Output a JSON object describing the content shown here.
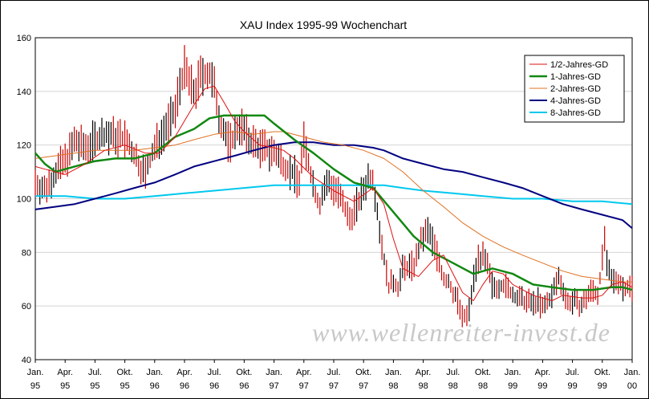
{
  "chart_data": {
    "type": "line",
    "title": "XAU Index 1995-99 Wochenchart",
    "watermark": "www.wellenreiter-invest.de",
    "ylim": [
      40,
      160
    ],
    "yticks": [
      "160",
      "140",
      "120",
      "100",
      "80",
      "60",
      "40"
    ],
    "xlim": [
      1995.0,
      2000.0
    ],
    "xticks": [
      {
        "month": "Jan.",
        "year": "95"
      },
      {
        "month": "Apr.",
        "year": "95"
      },
      {
        "month": "Jul.",
        "year": "95"
      },
      {
        "month": "Okt.",
        "year": "95"
      },
      {
        "month": "Jan.",
        "year": "96"
      },
      {
        "month": "Apr.",
        "year": "96"
      },
      {
        "month": "Jul.",
        "year": "96"
      },
      {
        "month": "Okt.",
        "year": "96"
      },
      {
        "month": "Jan.",
        "year": "97"
      },
      {
        "month": "Apr.",
        "year": "97"
      },
      {
        "month": "Jul.",
        "year": "97"
      },
      {
        "month": "Okt.",
        "year": "97"
      },
      {
        "month": "Jan.",
        "year": "98"
      },
      {
        "month": "Apr.",
        "year": "98"
      },
      {
        "month": "Jul.",
        "year": "98"
      },
      {
        "month": "Okt.",
        "year": "98"
      },
      {
        "month": "Jan.",
        "year": "99"
      },
      {
        "month": "Apr.",
        "year": "99"
      },
      {
        "month": "Jul.",
        "year": "99"
      },
      {
        "month": "Okt.",
        "year": "99"
      },
      {
        "month": "Jan.",
        "year": "00"
      }
    ],
    "grid": "horizontal",
    "legend_position": "top-right",
    "price_color": "#cc0000",
    "price_points": [
      [
        1995.0,
        106
      ],
      [
        1995.08,
        103
      ],
      [
        1995.17,
        110
      ],
      [
        1995.25,
        114
      ],
      [
        1995.33,
        121
      ],
      [
        1995.42,
        119
      ],
      [
        1995.5,
        122
      ],
      [
        1995.58,
        124
      ],
      [
        1995.67,
        123
      ],
      [
        1995.75,
        122
      ],
      [
        1995.83,
        116
      ],
      [
        1995.92,
        109
      ],
      [
        1996.0,
        119
      ],
      [
        1996.08,
        126
      ],
      [
        1996.17,
        132
      ],
      [
        1996.21,
        143
      ],
      [
        1996.25,
        148
      ],
      [
        1996.29,
        143
      ],
      [
        1996.33,
        139
      ],
      [
        1996.4,
        147
      ],
      [
        1996.46,
        146
      ],
      [
        1996.5,
        141
      ],
      [
        1996.54,
        131
      ],
      [
        1996.58,
        125
      ],
      [
        1996.63,
        120
      ],
      [
        1996.71,
        128
      ],
      [
        1996.79,
        122
      ],
      [
        1996.88,
        119
      ],
      [
        1996.96,
        118
      ],
      [
        1997.0,
        117
      ],
      [
        1997.08,
        113
      ],
      [
        1997.17,
        109
      ],
      [
        1997.21,
        106
      ],
      [
        1997.25,
        121
      ],
      [
        1997.33,
        105
      ],
      [
        1997.38,
        97
      ],
      [
        1997.42,
        104
      ],
      [
        1997.46,
        106
      ],
      [
        1997.54,
        102
      ],
      [
        1997.58,
        97
      ],
      [
        1997.63,
        92
      ],
      [
        1997.71,
        99
      ],
      [
        1997.79,
        108
      ],
      [
        1997.83,
        108
      ],
      [
        1997.88,
        90
      ],
      [
        1997.92,
        78
      ],
      [
        1997.96,
        67
      ],
      [
        1998.0,
        69
      ],
      [
        1998.04,
        67
      ],
      [
        1998.08,
        74
      ],
      [
        1998.17,
        75
      ],
      [
        1998.25,
        86
      ],
      [
        1998.29,
        88
      ],
      [
        1998.33,
        84
      ],
      [
        1998.38,
        77
      ],
      [
        1998.42,
        70
      ],
      [
        1998.46,
        69
      ],
      [
        1998.5,
        65
      ],
      [
        1998.54,
        62
      ],
      [
        1998.58,
        55
      ],
      [
        1998.63,
        57
      ],
      [
        1998.67,
        70
      ],
      [
        1998.71,
        78
      ],
      [
        1998.75,
        78
      ],
      [
        1998.79,
        74
      ],
      [
        1998.83,
        67
      ],
      [
        1998.92,
        68
      ],
      [
        1999.0,
        64
      ],
      [
        1999.08,
        62
      ],
      [
        1999.17,
        61
      ],
      [
        1999.21,
        62
      ],
      [
        1999.25,
        59
      ],
      [
        1999.33,
        64
      ],
      [
        1999.38,
        71
      ],
      [
        1999.42,
        67
      ],
      [
        1999.46,
        61
      ],
      [
        1999.5,
        62
      ],
      [
        1999.58,
        60
      ],
      [
        1999.63,
        64
      ],
      [
        1999.67,
        66
      ],
      [
        1999.71,
        64
      ],
      [
        1999.75,
        77
      ],
      [
        1999.77,
        86
      ],
      [
        1999.79,
        74
      ],
      [
        1999.83,
        69
      ],
      [
        1999.88,
        70
      ],
      [
        1999.92,
        67
      ],
      [
        1999.96,
        67
      ],
      [
        2000.0,
        67
      ]
    ],
    "series": [
      {
        "name": "1/2-Jahres-GD",
        "color": "#dd1111",
        "width": 1,
        "points": [
          [
            1995.0,
            112
          ],
          [
            1995.08,
            111
          ],
          [
            1995.25,
            109
          ],
          [
            1995.42,
            113
          ],
          [
            1995.58,
            118
          ],
          [
            1995.75,
            120
          ],
          [
            1995.92,
            117
          ],
          [
            1996.04,
            117
          ],
          [
            1996.17,
            123
          ],
          [
            1996.33,
            135
          ],
          [
            1996.42,
            141
          ],
          [
            1996.5,
            142
          ],
          [
            1996.58,
            136
          ],
          [
            1996.67,
            129
          ],
          [
            1996.75,
            125
          ],
          [
            1996.88,
            120
          ],
          [
            1997.0,
            119
          ],
          [
            1997.08,
            118
          ],
          [
            1997.17,
            115
          ],
          [
            1997.33,
            108
          ],
          [
            1997.5,
            103
          ],
          [
            1997.67,
            99
          ],
          [
            1997.83,
            104
          ],
          [
            1997.92,
            98
          ],
          [
            1998.0,
            85
          ],
          [
            1998.08,
            74
          ],
          [
            1998.21,
            71
          ],
          [
            1998.33,
            77
          ],
          [
            1998.42,
            79
          ],
          [
            1998.5,
            72
          ],
          [
            1998.58,
            65
          ],
          [
            1998.67,
            62
          ],
          [
            1998.75,
            68
          ],
          [
            1998.83,
            73
          ],
          [
            1998.92,
            72
          ],
          [
            1999.0,
            68
          ],
          [
            1999.17,
            64
          ],
          [
            1999.33,
            62
          ],
          [
            1999.42,
            64
          ],
          [
            1999.58,
            63
          ],
          [
            1999.67,
            63
          ],
          [
            1999.75,
            64
          ],
          [
            1999.83,
            68
          ],
          [
            1999.92,
            69
          ],
          [
            2000.0,
            67
          ]
        ]
      },
      {
        "name": "1-Jahres-GD",
        "color": "#118811",
        "width": 2.5,
        "points": [
          [
            1995.0,
            117
          ],
          [
            1995.08,
            113
          ],
          [
            1995.17,
            110
          ],
          [
            1995.25,
            111
          ],
          [
            1995.33,
            112
          ],
          [
            1995.5,
            114
          ],
          [
            1995.67,
            115
          ],
          [
            1995.83,
            115
          ],
          [
            1996.0,
            117
          ],
          [
            1996.17,
            123
          ],
          [
            1996.33,
            126
          ],
          [
            1996.46,
            130
          ],
          [
            1996.58,
            131
          ],
          [
            1996.75,
            131
          ],
          [
            1996.92,
            131
          ],
          [
            1997.0,
            128
          ],
          [
            1997.17,
            122
          ],
          [
            1997.33,
            117
          ],
          [
            1997.5,
            111
          ],
          [
            1997.67,
            106
          ],
          [
            1997.83,
            104
          ],
          [
            1998.0,
            95
          ],
          [
            1998.17,
            86
          ],
          [
            1998.33,
            80
          ],
          [
            1998.5,
            76
          ],
          [
            1998.67,
            72
          ],
          [
            1998.83,
            74
          ],
          [
            1999.0,
            72
          ],
          [
            1999.17,
            68
          ],
          [
            1999.33,
            67
          ],
          [
            1999.5,
            66
          ],
          [
            1999.67,
            66
          ],
          [
            1999.83,
            67
          ],
          [
            1999.92,
            67
          ],
          [
            2000.0,
            66
          ]
        ]
      },
      {
        "name": "2-Jahres-GD",
        "color": "#e07020",
        "width": 1,
        "points": [
          [
            1995.0,
            115
          ],
          [
            1995.17,
            116
          ],
          [
            1995.33,
            117
          ],
          [
            1995.5,
            118
          ],
          [
            1995.67,
            118
          ],
          [
            1995.83,
            118
          ],
          [
            1996.0,
            119
          ],
          [
            1996.17,
            120
          ],
          [
            1996.33,
            122
          ],
          [
            1996.5,
            124
          ],
          [
            1996.67,
            125
          ],
          [
            1996.83,
            124
          ],
          [
            1997.0,
            125
          ],
          [
            1997.08,
            125
          ],
          [
            1997.25,
            123
          ],
          [
            1997.42,
            121
          ],
          [
            1997.58,
            120
          ],
          [
            1997.75,
            118
          ],
          [
            1997.92,
            115
          ],
          [
            1998.08,
            110
          ],
          [
            1998.25,
            103
          ],
          [
            1998.42,
            97
          ],
          [
            1998.58,
            91
          ],
          [
            1998.75,
            86
          ],
          [
            1998.92,
            82
          ],
          [
            1999.08,
            79
          ],
          [
            1999.25,
            76
          ],
          [
            1999.42,
            73
          ],
          [
            1999.58,
            71
          ],
          [
            1999.75,
            70
          ],
          [
            1999.92,
            69
          ],
          [
            2000.0,
            69
          ]
        ]
      },
      {
        "name": "4-Jahres-GD",
        "color": "#000080",
        "width": 2,
        "points": [
          [
            1995.0,
            96
          ],
          [
            1995.17,
            97
          ],
          [
            1995.33,
            98
          ],
          [
            1995.5,
            100
          ],
          [
            1995.67,
            102
          ],
          [
            1995.83,
            104
          ],
          [
            1996.0,
            106
          ],
          [
            1996.17,
            109
          ],
          [
            1996.33,
            112
          ],
          [
            1996.5,
            114
          ],
          [
            1996.67,
            116
          ],
          [
            1996.83,
            118
          ],
          [
            1997.0,
            120
          ],
          [
            1997.17,
            121
          ],
          [
            1997.33,
            121
          ],
          [
            1997.5,
            120
          ],
          [
            1997.67,
            120
          ],
          [
            1997.83,
            119
          ],
          [
            1997.92,
            118
          ],
          [
            1998.08,
            115
          ],
          [
            1998.25,
            113
          ],
          [
            1998.42,
            111
          ],
          [
            1998.58,
            110
          ],
          [
            1998.75,
            108
          ],
          [
            1998.92,
            106
          ],
          [
            1999.08,
            104
          ],
          [
            1999.25,
            101
          ],
          [
            1999.42,
            98
          ],
          [
            1999.58,
            96
          ],
          [
            1999.75,
            94
          ],
          [
            1999.92,
            92
          ],
          [
            2000.0,
            89
          ]
        ]
      },
      {
        "name": "8-Jahres-GD",
        "color": "#00c8ee",
        "width": 2,
        "points": [
          [
            1995.0,
            101
          ],
          [
            1995.25,
            101
          ],
          [
            1995.5,
            100
          ],
          [
            1995.75,
            100
          ],
          [
            1996.0,
            101
          ],
          [
            1996.25,
            102
          ],
          [
            1996.5,
            103
          ],
          [
            1996.75,
            104
          ],
          [
            1997.0,
            105
          ],
          [
            1997.25,
            105
          ],
          [
            1997.5,
            105
          ],
          [
            1997.75,
            105
          ],
          [
            1997.92,
            105
          ],
          [
            1998.08,
            104
          ],
          [
            1998.25,
            103
          ],
          [
            1998.5,
            102
          ],
          [
            1998.75,
            101
          ],
          [
            1999.0,
            100
          ],
          [
            1999.25,
            100
          ],
          [
            1999.5,
            99
          ],
          [
            1999.75,
            99
          ],
          [
            2000.0,
            98
          ]
        ]
      }
    ]
  }
}
